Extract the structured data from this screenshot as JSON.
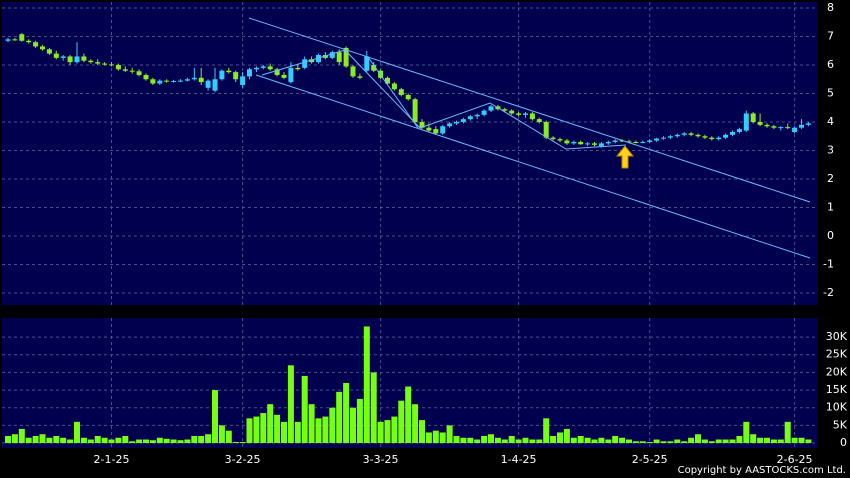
{
  "chart_data": [
    {
      "type": "candlestick",
      "up_color": "#33ccff",
      "down_color": "#88ee22",
      "ylim": [
        -2.42,
        8.21
      ],
      "yticks": [
        8,
        7,
        6,
        5,
        4,
        3,
        2,
        1,
        0,
        -1,
        -2
      ],
      "grid": true,
      "ohlc": [
        [
          6.85,
          6.95,
          6.8,
          6.9
        ],
        [
          6.9,
          6.95,
          6.85,
          6.88
        ],
        [
          7.08,
          7.12,
          6.82,
          6.85
        ],
        [
          6.85,
          6.9,
          6.75,
          6.8
        ],
        [
          6.8,
          6.85,
          6.6,
          6.65
        ],
        [
          6.65,
          6.7,
          6.5,
          6.55
        ],
        [
          6.55,
          6.6,
          6.35,
          6.4
        ],
        [
          6.4,
          6.5,
          6.2,
          6.25
        ],
        [
          6.25,
          6.35,
          6.15,
          6.3
        ],
        [
          6.3,
          6.35,
          6.0,
          6.1
        ],
        [
          6.1,
          6.8,
          6.05,
          6.3
        ],
        [
          6.3,
          6.4,
          6.1,
          6.15
        ],
        [
          6.15,
          6.2,
          6.05,
          6.1
        ],
        [
          6.1,
          6.2,
          6.0,
          6.05
        ],
        [
          6.05,
          6.1,
          5.98,
          6.02
        ],
        [
          6.02,
          6.1,
          5.95,
          6.0
        ],
        [
          6.0,
          6.05,
          5.8,
          5.85
        ],
        [
          5.85,
          5.95,
          5.75,
          5.8
        ],
        [
          5.8,
          5.9,
          5.7,
          5.78
        ],
        [
          5.78,
          5.85,
          5.6,
          5.65
        ],
        [
          5.65,
          5.7,
          5.45,
          5.5
        ],
        [
          5.5,
          5.55,
          5.3,
          5.35
        ],
        [
          5.35,
          5.5,
          5.3,
          5.45
        ],
        [
          5.45,
          5.5,
          5.38,
          5.42
        ],
        [
          5.42,
          5.48,
          5.38,
          5.44
        ],
        [
          5.44,
          5.5,
          5.4,
          5.45
        ],
        [
          5.45,
          5.55,
          5.42,
          5.5
        ],
        [
          5.5,
          5.9,
          5.45,
          5.55
        ],
        [
          5.55,
          5.9,
          5.3,
          5.4
        ],
        [
          5.2,
          5.5,
          5.1,
          5.45
        ],
        [
          5.1,
          5.9,
          5.05,
          5.5
        ],
        [
          5.5,
          5.85,
          5.45,
          5.8
        ],
        [
          5.8,
          5.9,
          5.7,
          5.75
        ],
        [
          5.75,
          5.8,
          5.4,
          5.5
        ],
        [
          5.3,
          5.75,
          5.2,
          5.6
        ],
        [
          5.6,
          5.9,
          5.5,
          5.85
        ],
        [
          5.85,
          5.95,
          5.75,
          5.9
        ],
        [
          5.9,
          6.0,
          5.85,
          5.95
        ],
        [
          5.95,
          6.05,
          5.8,
          5.85
        ],
        [
          5.85,
          5.9,
          5.6,
          5.65
        ],
        [
          5.65,
          5.75,
          5.5,
          5.55
        ],
        [
          5.4,
          6.1,
          5.35,
          5.9
        ],
        [
          5.9,
          6.0,
          5.8,
          5.85
        ],
        [
          5.9,
          6.3,
          5.85,
          6.2
        ],
        [
          6.2,
          6.3,
          6.05,
          6.1
        ],
        [
          6.1,
          6.4,
          6.05,
          6.35
        ],
        [
          6.35,
          6.45,
          6.2,
          6.25
        ],
        [
          6.25,
          6.5,
          6.2,
          6.45
        ],
        [
          6.45,
          6.55,
          6.0,
          6.1
        ],
        [
          6.6,
          6.65,
          5.9,
          5.95
        ],
        [
          5.95,
          6.0,
          5.55,
          5.6
        ],
        [
          5.6,
          5.7,
          5.5,
          5.55
        ],
        [
          5.8,
          6.5,
          5.75,
          6.3
        ],
        [
          6.0,
          6.1,
          5.75,
          5.8
        ],
        [
          5.8,
          5.85,
          5.5,
          5.55
        ],
        [
          5.55,
          5.6,
          5.3,
          5.35
        ],
        [
          5.35,
          5.4,
          5.1,
          5.15
        ],
        [
          5.15,
          5.2,
          4.9,
          4.95
        ],
        [
          4.95,
          5.0,
          4.75,
          4.8
        ],
        [
          4.8,
          4.85,
          3.95,
          4.0
        ],
        [
          4.0,
          4.1,
          3.75,
          3.8
        ],
        [
          3.8,
          3.95,
          3.65,
          3.7
        ],
        [
          3.75,
          3.85,
          3.55,
          3.6
        ],
        [
          3.6,
          3.9,
          3.55,
          3.85
        ],
        [
          3.85,
          4.0,
          3.8,
          3.95
        ],
        [
          3.95,
          4.05,
          3.9,
          4.0
        ],
        [
          4.0,
          4.15,
          3.95,
          4.1
        ],
        [
          4.1,
          4.25,
          4.05,
          4.2
        ],
        [
          4.2,
          4.3,
          4.1,
          4.25
        ],
        [
          4.25,
          4.45,
          4.2,
          4.4
        ],
        [
          4.4,
          4.6,
          4.35,
          4.55
        ],
        [
          4.55,
          4.6,
          4.4,
          4.45
        ],
        [
          4.45,
          4.5,
          4.35,
          4.4
        ],
        [
          4.4,
          4.45,
          4.25,
          4.3
        ],
        [
          4.3,
          4.35,
          4.2,
          4.25
        ],
        [
          4.25,
          4.35,
          4.15,
          4.3
        ],
        [
          4.3,
          4.35,
          4.05,
          4.1
        ],
        [
          4.1,
          4.15,
          3.95,
          4.0
        ],
        [
          4.0,
          4.05,
          3.4,
          3.45
        ],
        [
          3.45,
          3.5,
          3.35,
          3.4
        ],
        [
          3.4,
          3.45,
          3.3,
          3.35
        ],
        [
          3.35,
          3.4,
          3.2,
          3.25
        ],
        [
          3.25,
          3.35,
          3.2,
          3.3
        ],
        [
          3.3,
          3.35,
          3.2,
          3.22
        ],
        [
          3.22,
          3.3,
          3.15,
          3.25
        ],
        [
          3.25,
          3.3,
          3.15,
          3.2
        ],
        [
          3.15,
          3.3,
          3.1,
          3.25
        ],
        [
          3.25,
          3.35,
          3.2,
          3.3
        ],
        [
          3.3,
          3.4,
          3.25,
          3.35
        ],
        [
          3.35,
          3.4,
          3.3,
          3.32
        ],
        [
          3.32,
          3.38,
          3.25,
          3.3
        ],
        [
          3.3,
          3.35,
          3.25,
          3.28
        ],
        [
          3.28,
          3.35,
          3.25,
          3.3
        ],
        [
          3.3,
          3.4,
          3.25,
          3.35
        ],
        [
          3.35,
          3.45,
          3.3,
          3.42
        ],
        [
          3.42,
          3.5,
          3.38,
          3.45
        ],
        [
          3.45,
          3.55,
          3.4,
          3.5
        ],
        [
          3.5,
          3.6,
          3.45,
          3.55
        ],
        [
          3.55,
          3.65,
          3.5,
          3.6
        ],
        [
          3.6,
          3.65,
          3.5,
          3.55
        ],
        [
          3.55,
          3.6,
          3.45,
          3.5
        ],
        [
          3.5,
          3.55,
          3.4,
          3.45
        ],
        [
          3.45,
          3.5,
          3.35,
          3.4
        ],
        [
          3.4,
          3.5,
          3.35,
          3.45
        ],
        [
          3.45,
          3.6,
          3.4,
          3.55
        ],
        [
          3.55,
          3.7,
          3.5,
          3.65
        ],
        [
          3.65,
          3.8,
          3.6,
          3.75
        ],
        [
          3.7,
          4.4,
          3.65,
          4.3
        ],
        [
          4.3,
          4.35,
          3.95,
          4.0
        ],
        [
          4.0,
          4.3,
          3.85,
          3.9
        ],
        [
          3.9,
          3.95,
          3.8,
          3.85
        ],
        [
          3.85,
          3.9,
          3.75,
          3.8
        ],
        [
          3.8,
          3.85,
          3.7,
          3.82
        ],
        [
          3.82,
          3.95,
          3.75,
          3.8
        ],
        [
          3.65,
          3.85,
          3.6,
          3.8
        ],
        [
          3.8,
          4.1,
          3.75,
          3.9
        ],
        [
          3.9,
          4.0,
          3.85,
          3.95
        ]
      ]
    },
    {
      "type": "bar",
      "color": "#77ff11",
      "ylim": [
        -1400,
        35400
      ],
      "yticks": [
        0,
        {
          "value": 5000,
          "label": "5K"
        },
        {
          "value": 10000,
          "label": "10K"
        },
        {
          "value": 15000,
          "label": "15K"
        },
        {
          "value": 20000,
          "label": "20K"
        },
        {
          "value": 25000,
          "label": "25K"
        },
        {
          "value": 30000,
          "label": "30K"
        }
      ],
      "grid": true,
      "categories": [
        null,
        null,
        null,
        null,
        null,
        null,
        null,
        null,
        null,
        null,
        null,
        null,
        null,
        null,
        null,
        "2-1-25",
        null,
        null,
        null,
        null,
        null,
        null,
        null,
        null,
        null,
        null,
        null,
        null,
        null,
        null,
        null,
        null,
        null,
        null,
        "3-2-25",
        null,
        null,
        null,
        null,
        null,
        null,
        null,
        null,
        null,
        null,
        null,
        null,
        null,
        null,
        null,
        null,
        null,
        null,
        null,
        "3-3-25",
        null,
        null,
        null,
        null,
        null,
        null,
        null,
        null,
        null,
        null,
        null,
        null,
        null,
        null,
        null,
        null,
        null,
        null,
        null,
        "1-4-25",
        null,
        null,
        null,
        null,
        null,
        null,
        null,
        null,
        null,
        null,
        null,
        null,
        null,
        null,
        null,
        null,
        null,
        null,
        "2-5-25",
        null,
        null,
        null,
        null,
        null,
        null,
        null,
        null,
        null,
        null,
        null,
        null,
        null,
        null,
        null,
        null,
        null,
        null,
        null,
        null,
        "2-6-25",
        null,
        null
      ],
      "values": [
        2000,
        2500,
        4000,
        1500,
        2000,
        2500,
        1500,
        2000,
        1500,
        1000,
        6000,
        1500,
        1000,
        2000,
        1500,
        1000,
        1500,
        2000,
        500,
        1000,
        1000,
        800,
        1500,
        1200,
        1000,
        800,
        1000,
        2000,
        2000,
        2500,
        15000,
        5000,
        3500,
        300,
        300,
        7000,
        7500,
        8500,
        11000,
        8000,
        6000,
        22000,
        6000,
        19000,
        11000,
        7000,
        7500,
        10000,
        14500,
        17000,
        10000,
        12500,
        33000,
        20000,
        6000,
        6500,
        7500,
        12000,
        16000,
        11000,
        6500,
        3000,
        3500,
        3000,
        5000,
        2000,
        1500,
        1500,
        1000,
        2000,
        2500,
        1500,
        1000,
        2000,
        1000,
        1500,
        1000,
        1000,
        7000,
        2000,
        3000,
        4000,
        1500,
        2000,
        1500,
        1000,
        1500,
        1000,
        2000,
        1500,
        1000,
        500,
        500,
        300,
        1000,
        500,
        500,
        1000,
        500,
        1500,
        2500,
        1000,
        500,
        1000,
        1000,
        1000,
        2000,
        6000,
        2500,
        1500,
        1500,
        1000,
        1000,
        6000,
        1500,
        1500,
        1000
      ]
    }
  ],
  "copyright": "Copyright by AASTOCKS.com Ltd."
}
